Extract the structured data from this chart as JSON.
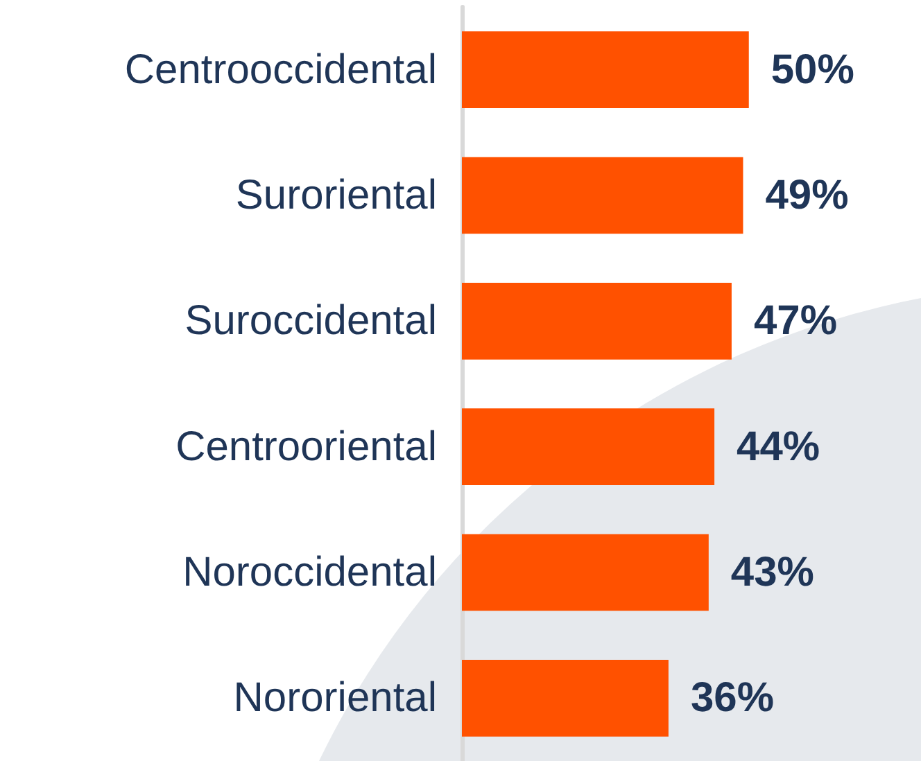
{
  "chart_data": {
    "type": "bar",
    "orientation": "horizontal",
    "categories": [
      "Centrooccidental",
      "Suroriental",
      "Suroccidental",
      "Centrooriental",
      "Noroccidental",
      "Nororiental"
    ],
    "values": [
      50,
      49,
      47,
      44,
      43,
      36
    ],
    "color": "#ff5100",
    "value_labels": [
      "50%",
      "49%",
      "47%",
      "44%",
      "43%",
      "36%"
    ]
  }
}
